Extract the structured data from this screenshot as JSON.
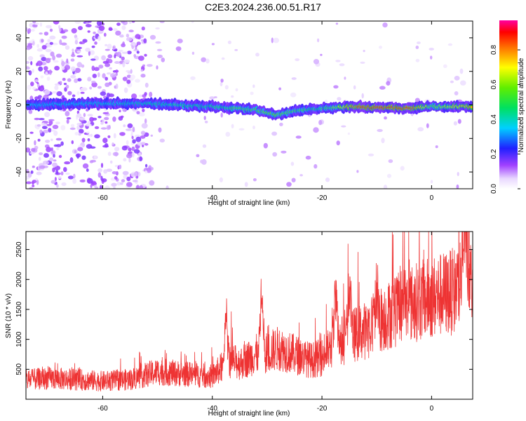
{
  "figure_title": "C2E3.2024.236.00.51.R17",
  "chart_data": [
    {
      "type": "heatmap",
      "title": "",
      "xlabel": "Height of straight line (km)",
      "ylabel": "Frequency (Hz)",
      "xlim": [
        -74,
        7.5
      ],
      "ylim": [
        -50,
        50
      ],
      "xticks": [
        -60,
        -40,
        -20,
        0
      ],
      "xtick_labels": [
        "-60",
        "-40",
        "-20",
        "0"
      ],
      "yticks": [
        -40,
        -20,
        0,
        20,
        40
      ],
      "ytick_labels": [
        "-40",
        "-20",
        "0",
        "20",
        "40"
      ],
      "colorbar": {
        "label": "Normalized spectral amplitude",
        "range": [
          0,
          0.97
        ],
        "ticks": [
          0,
          0.2,
          0.4,
          0.6,
          0.8
        ],
        "tick_labels": [
          "0.0",
          "0.2",
          "0.4",
          "0.6",
          "0.8"
        ],
        "colormap": "rainbow (white-violet-blue-cyan-green-yellow-red-magenta)"
      },
      "band": {
        "description": "main spectral band near 0 Hz",
        "center_hz": [
          {
            "x": -74,
            "y": 0.0
          },
          {
            "x": -60,
            "y": 1.0
          },
          {
            "x": -50,
            "y": 0.5
          },
          {
            "x": -40,
            "y": -1.0
          },
          {
            "x": -32,
            "y": -3.0
          },
          {
            "x": -28,
            "y": -6.0
          },
          {
            "x": -24,
            "y": -3.0
          },
          {
            "x": -20,
            "y": -2.0
          },
          {
            "x": -14,
            "y": -1.0
          },
          {
            "x": -5,
            "y": -2.0
          },
          {
            "x": 0,
            "y": -1.0
          },
          {
            "x": 7.5,
            "y": -1.0
          }
        ],
        "peak_amplitude": [
          {
            "x": -74,
            "y": 0.35
          },
          {
            "x": -60,
            "y": 0.4
          },
          {
            "x": -50,
            "y": 0.45
          },
          {
            "x": -40,
            "y": 0.5
          },
          {
            "x": -30,
            "y": 0.6
          },
          {
            "x": -20,
            "y": 0.5
          },
          {
            "x": -13,
            "y": 0.9
          },
          {
            "x": -4,
            "y": 0.9
          },
          {
            "x": 0,
            "y": 0.6
          },
          {
            "x": 7.5,
            "y": 0.8
          }
        ]
      }
    },
    {
      "type": "line",
      "title": "",
      "xlabel": "Height of straight line (km)",
      "ylabel": "SNR (10 * v/v)",
      "xlim": [
        -74,
        7.5
      ],
      "ylim": [
        0,
        2800
      ],
      "xticks": [
        -60,
        -40,
        -20,
        0
      ],
      "xtick_labels": [
        "-60",
        "-40",
        "-20",
        "0"
      ],
      "yticks": [
        500,
        1000,
        1500,
        2000,
        2500
      ],
      "ytick_labels": [
        "500",
        "1000",
        "1500",
        "2000",
        "2500"
      ],
      "color": "#ee3333",
      "series": [
        {
          "name": "",
          "x": [
            -74,
            -70,
            -65,
            -60,
            -55,
            -50,
            -45,
            -40,
            -37,
            -35,
            -32,
            -30,
            -28,
            -25,
            -22,
            -20,
            -18,
            -15,
            -12,
            -10,
            -7,
            -5,
            -2,
            0,
            2,
            4,
            5,
            6,
            6.5,
            7,
            7.5
          ],
          "y": [
            320,
            350,
            330,
            300,
            330,
            460,
            420,
            380,
            650,
            600,
            750,
            780,
            850,
            750,
            650,
            700,
            900,
            1050,
            1150,
            1300,
            1450,
            1550,
            1650,
            1700,
            1750,
            1800,
            1900,
            2300,
            2700,
            1900,
            2100
          ]
        }
      ],
      "peaks": [
        {
          "x": -37.5,
          "y": 1480
        },
        {
          "x": -31,
          "y": 1820
        },
        {
          "x": -17.5,
          "y": 1950
        },
        {
          "x": -15,
          "y": 1930
        },
        {
          "x": -10,
          "y": 1870
        },
        {
          "x": -5,
          "y": 1980
        },
        {
          "x": 6,
          "y": 2800
        }
      ]
    }
  ]
}
